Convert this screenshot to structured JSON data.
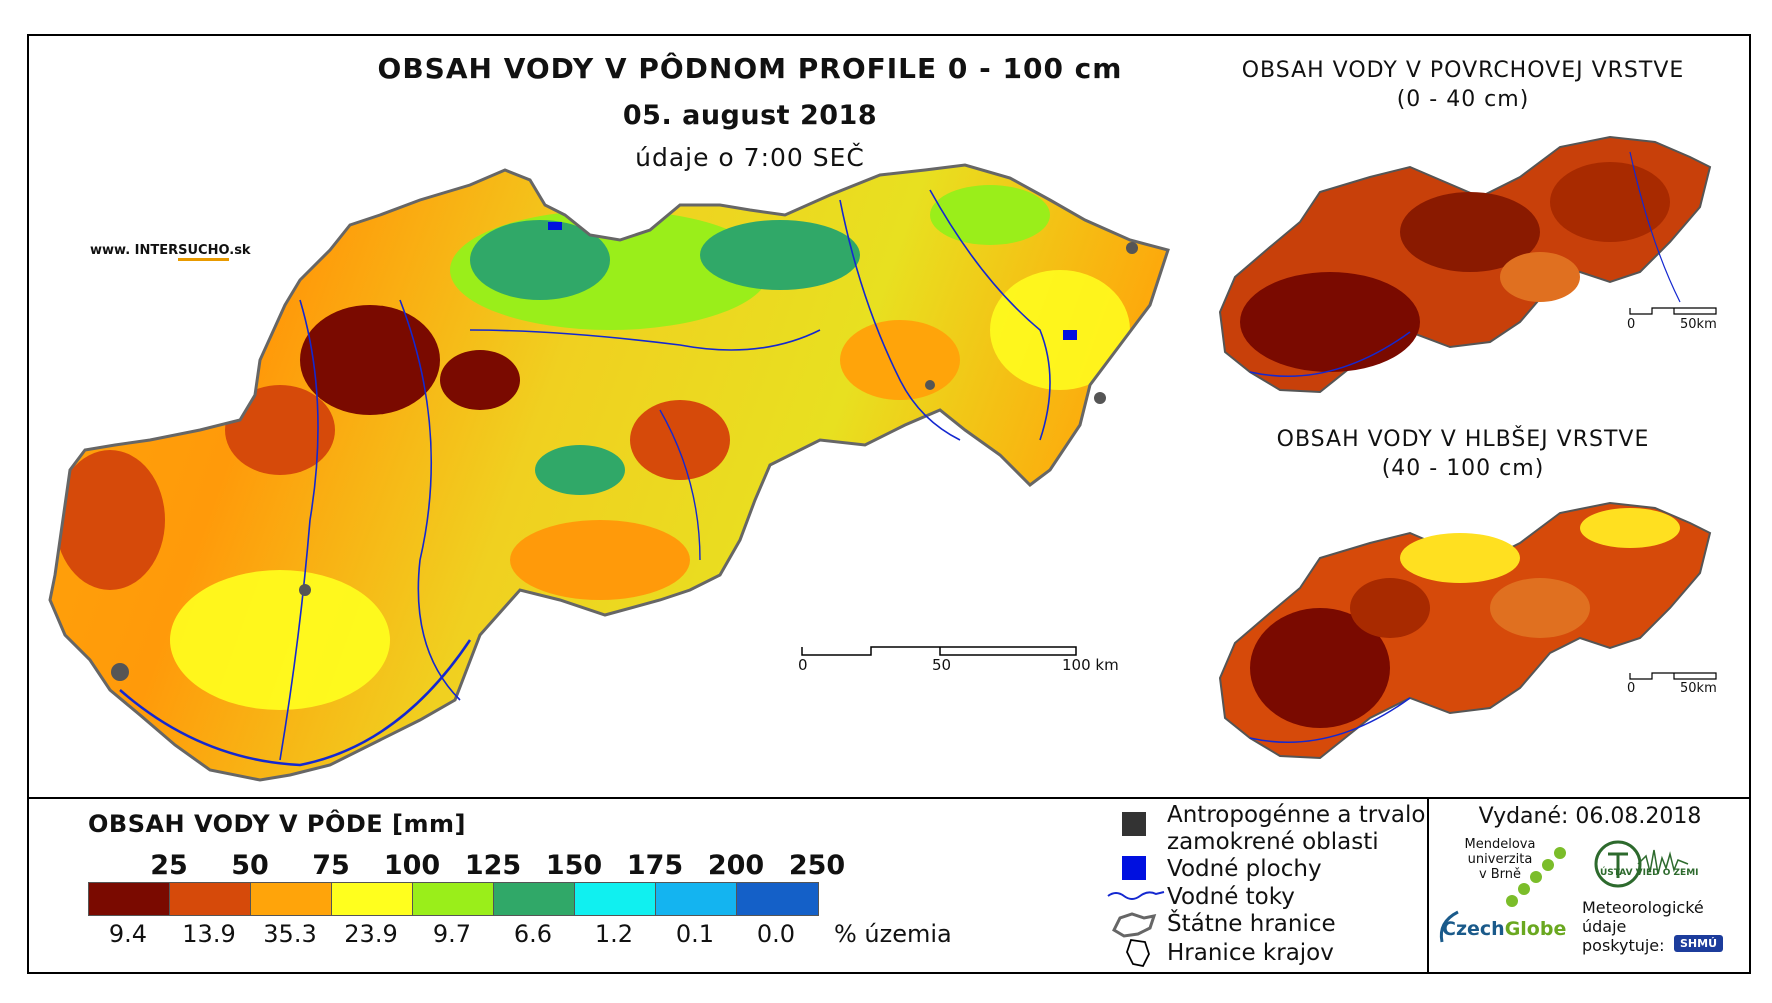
{
  "main_title": "OBSAH VODY V PÔDNOM PROFILE 0 - 100 cm",
  "date": "05. august 2018",
  "time_note": "údaje o 7:00 SEČ",
  "website": {
    "prefix": "www. INTER",
    "highlight": "SUCHO",
    "suffix": ".sk"
  },
  "surface_layer": {
    "title": "OBSAH VODY V POVRCHOVEJ VRSTVE",
    "depth": "(0 - 40 cm)"
  },
  "deep_layer": {
    "title": "OBSAH VODY V HLBŠEJ VRSTVE",
    "depth": "(40 - 100 cm)"
  },
  "scale_main": {
    "zero": "0",
    "mid": "50",
    "end": "100 km"
  },
  "scale_small": {
    "zero": "0",
    "end": "50km"
  },
  "legend": {
    "title": "OBSAH VODY V PÔDE [mm]",
    "thresholds": [
      "25",
      "50",
      "75",
      "100",
      "125",
      "150",
      "175",
      "200",
      "250"
    ],
    "colors": [
      "#7a0a00",
      "#d64a0a",
      "#ffa40a",
      "#ffff1e",
      "#9aee1a",
      "#30a868",
      "#10f0f0",
      "#14b4f0",
      "#1460c8"
    ],
    "percentages": [
      "9.4",
      "13.9",
      "35.3",
      "23.9",
      "9.7",
      "6.6",
      "1.2",
      "0.1",
      "0.0"
    ],
    "pct_unit": "% územia"
  },
  "symbols": {
    "anthropogenic_1": "Antropogénne a trvalo",
    "anthropogenic_2": "zamokrené oblasti",
    "water_bodies": "Vodné plochy",
    "streams": "Vodné toky",
    "state_border": "Štátne hranice",
    "regional_border": "Hranice krajov"
  },
  "issued": "Vydané: 06.08.2018",
  "logos": {
    "mendel": "Mendelova\nuniverzita\nv Brně",
    "czechglobe_a": "Czech",
    "czechglobe_b": "Globe",
    "ustav": "ÚSTAV VIED O ZEMI",
    "meteo_1": "Meteorologické",
    "meteo_2": "údaje",
    "meteo_3": "poskytuje:",
    "shmu": "SHMÚ"
  }
}
